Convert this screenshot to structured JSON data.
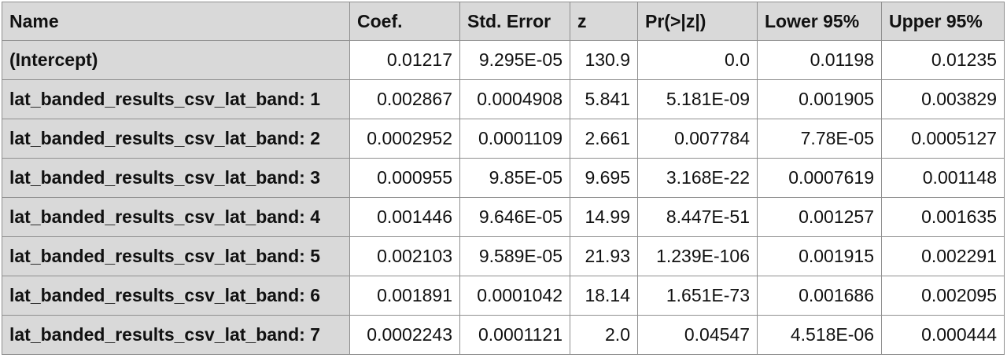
{
  "table": {
    "headers": [
      "Name",
      "Coef.",
      "Std. Error",
      "z",
      "Pr(>|z|)",
      "Lower 95%",
      "Upper 95%"
    ],
    "rows": [
      [
        "(Intercept)",
        "0.01217",
        "9.295E-05",
        "130.9",
        "0.0",
        "0.01198",
        "0.01235"
      ],
      [
        "lat_banded_results_csv_lat_band: 1",
        "0.002867",
        "0.0004908",
        "5.841",
        "5.181E-09",
        "0.001905",
        "0.003829"
      ],
      [
        "lat_banded_results_csv_lat_band: 2",
        "0.0002952",
        "0.0001109",
        "2.661",
        "0.007784",
        "7.78E-05",
        "0.0005127"
      ],
      [
        "lat_banded_results_csv_lat_band: 3",
        "0.000955",
        "9.85E-05",
        "9.695",
        "3.168E-22",
        "0.0007619",
        "0.001148"
      ],
      [
        "lat_banded_results_csv_lat_band: 4",
        "0.001446",
        "9.646E-05",
        "14.99",
        "8.447E-51",
        "0.001257",
        "0.001635"
      ],
      [
        "lat_banded_results_csv_lat_band: 5",
        "0.002103",
        "9.589E-05",
        "21.93",
        "1.239E-106",
        "0.001915",
        "0.002291"
      ],
      [
        "lat_banded_results_csv_lat_band: 6",
        "0.001891",
        "0.0001042",
        "18.14",
        "1.651E-73",
        "0.001686",
        "0.002095"
      ],
      [
        "lat_banded_results_csv_lat_band: 7",
        "0.0002243",
        "0.0001121",
        "2.0",
        "0.04547",
        "4.518E-06",
        "0.000444"
      ]
    ]
  }
}
